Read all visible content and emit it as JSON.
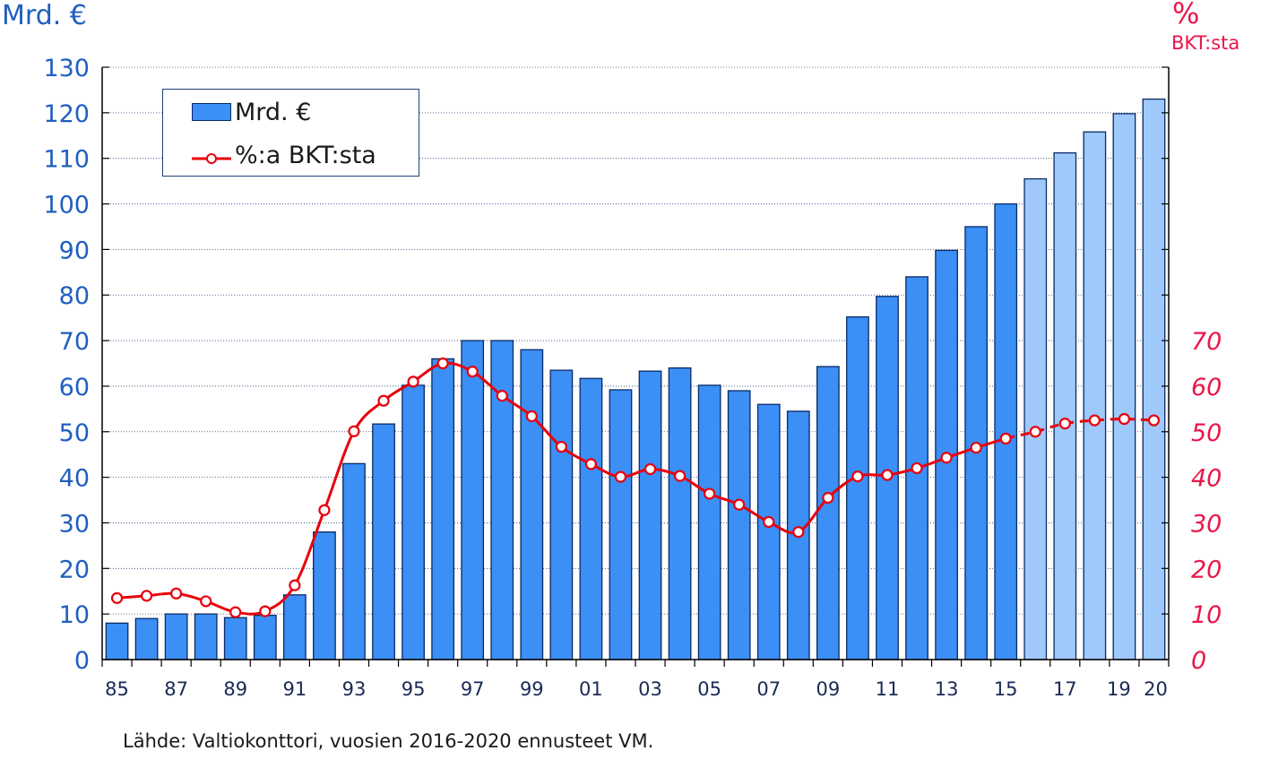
{
  "left_unit": "Mrd. €",
  "right_unit_symbol": "%",
  "right_unit_label": "BKT:sta",
  "source": "Lähde: Valtiokonttori, vuosien 2016-2020 ennusteet VM.",
  "legend": {
    "bars": "Mrd. €",
    "line": "%:a BKT:sta"
  },
  "colors": {
    "bar_actual": "#3b8ff5",
    "bar_forecast": "#9fc8fb",
    "bar_border": "#0a2a66",
    "line": "#e8000d",
    "left_axis": "#1f5fbf",
    "right_axis": "#e8174a"
  },
  "chart_data": {
    "type": "bar",
    "categories": [
      "85",
      "86",
      "87",
      "88",
      "89",
      "90",
      "91",
      "92",
      "93",
      "94",
      "95",
      "96",
      "97",
      "98",
      "99",
      "00",
      "01",
      "02",
      "03",
      "04",
      "05",
      "06",
      "07",
      "08",
      "09",
      "10",
      "11",
      "12",
      "13",
      "14",
      "15",
      "16",
      "17",
      "18",
      "19",
      "20"
    ],
    "x_tick_labels": [
      "85",
      "87",
      "89",
      "91",
      "93",
      "95",
      "97",
      "99",
      "01",
      "03",
      "05",
      "07",
      "09",
      "11",
      "13",
      "15",
      "17",
      "19",
      "20"
    ],
    "series": [
      {
        "name": "Mrd. €",
        "type": "bar",
        "axis": "left",
        "values": [
          8,
          9,
          10,
          10,
          9.2,
          9.7,
          14.2,
          28,
          43,
          51.7,
          60.2,
          66,
          70,
          70,
          68,
          63.5,
          61.7,
          59.2,
          63.3,
          64,
          60.2,
          59,
          56,
          54.5,
          64.3,
          75.2,
          79.7,
          84,
          89.8,
          95,
          100,
          105.5,
          111.2,
          115.8,
          119.8,
          123
        ],
        "forecast_from": "16"
      },
      {
        "name": "%:a BKT:sta",
        "type": "line",
        "axis": "right",
        "values": [
          13.5,
          14,
          14.5,
          12.8,
          10.4,
          10.6,
          16.3,
          32.8,
          50.1,
          56.8,
          61,
          65,
          63.2,
          57.9,
          53.4,
          46.7,
          42.9,
          40.1,
          41.8,
          40.3,
          36.4,
          34,
          30.2,
          28,
          35.5,
          40.2,
          40.5,
          42,
          44.3,
          46.5,
          48.5,
          50,
          51.8,
          52.5,
          52.8,
          52.5
        ],
        "forecast_from": "16"
      }
    ],
    "ylim_left": [
      0,
      130
    ],
    "yticks_left": [
      0,
      10,
      20,
      30,
      40,
      50,
      60,
      70,
      80,
      90,
      100,
      110,
      120,
      130
    ],
    "ylim_right": [
      0,
      130
    ],
    "yticks_right": [
      0,
      10,
      20,
      30,
      40,
      50,
      60,
      70
    ],
    "grid": true,
    "legend_position": "top-left"
  }
}
